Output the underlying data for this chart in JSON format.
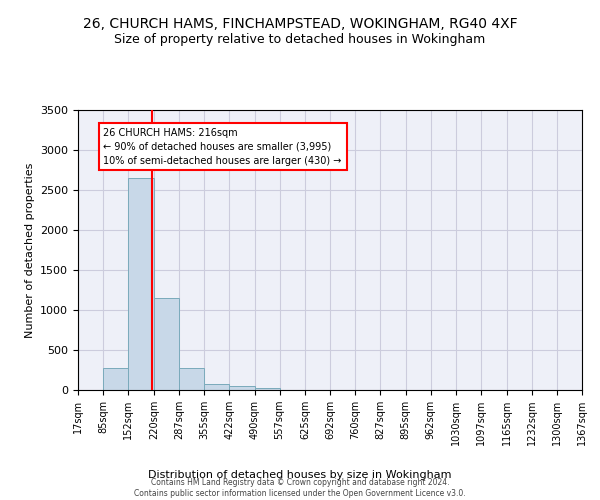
{
  "title": "26, CHURCH HAMS, FINCHAMPSTEAD, WOKINGHAM, RG40 4XF",
  "subtitle": "Size of property relative to detached houses in Wokingham",
  "xlabel": "Distribution of detached houses by size in Wokingham",
  "ylabel": "Number of detached properties",
  "bar_color": "#c8d8e8",
  "bar_edge_color": "#7aaabb",
  "grid_color": "#ccccdd",
  "background_color": "#eef0f8",
  "bin_edges": [
    17,
    85,
    152,
    220,
    287,
    355,
    422,
    490,
    557,
    625,
    692,
    760,
    827,
    895,
    962,
    1030,
    1097,
    1165,
    1232,
    1300,
    1367
  ],
  "bin_heights": [
    0,
    270,
    2650,
    1150,
    280,
    80,
    50,
    30,
    0,
    0,
    0,
    0,
    0,
    0,
    0,
    0,
    0,
    0,
    0,
    0
  ],
  "red_line_x": 216,
  "ylim": [
    0,
    3500
  ],
  "yticks": [
    0,
    500,
    1000,
    1500,
    2000,
    2500,
    3000,
    3500
  ],
  "annotation_text": "26 CHURCH HAMS: 216sqm\n← 90% of detached houses are smaller (3,995)\n10% of semi-detached houses are larger (430) →",
  "footer_line1": "Contains HM Land Registry data © Crown copyright and database right 2024.",
  "footer_line2": "Contains public sector information licensed under the Open Government Licence v3.0."
}
